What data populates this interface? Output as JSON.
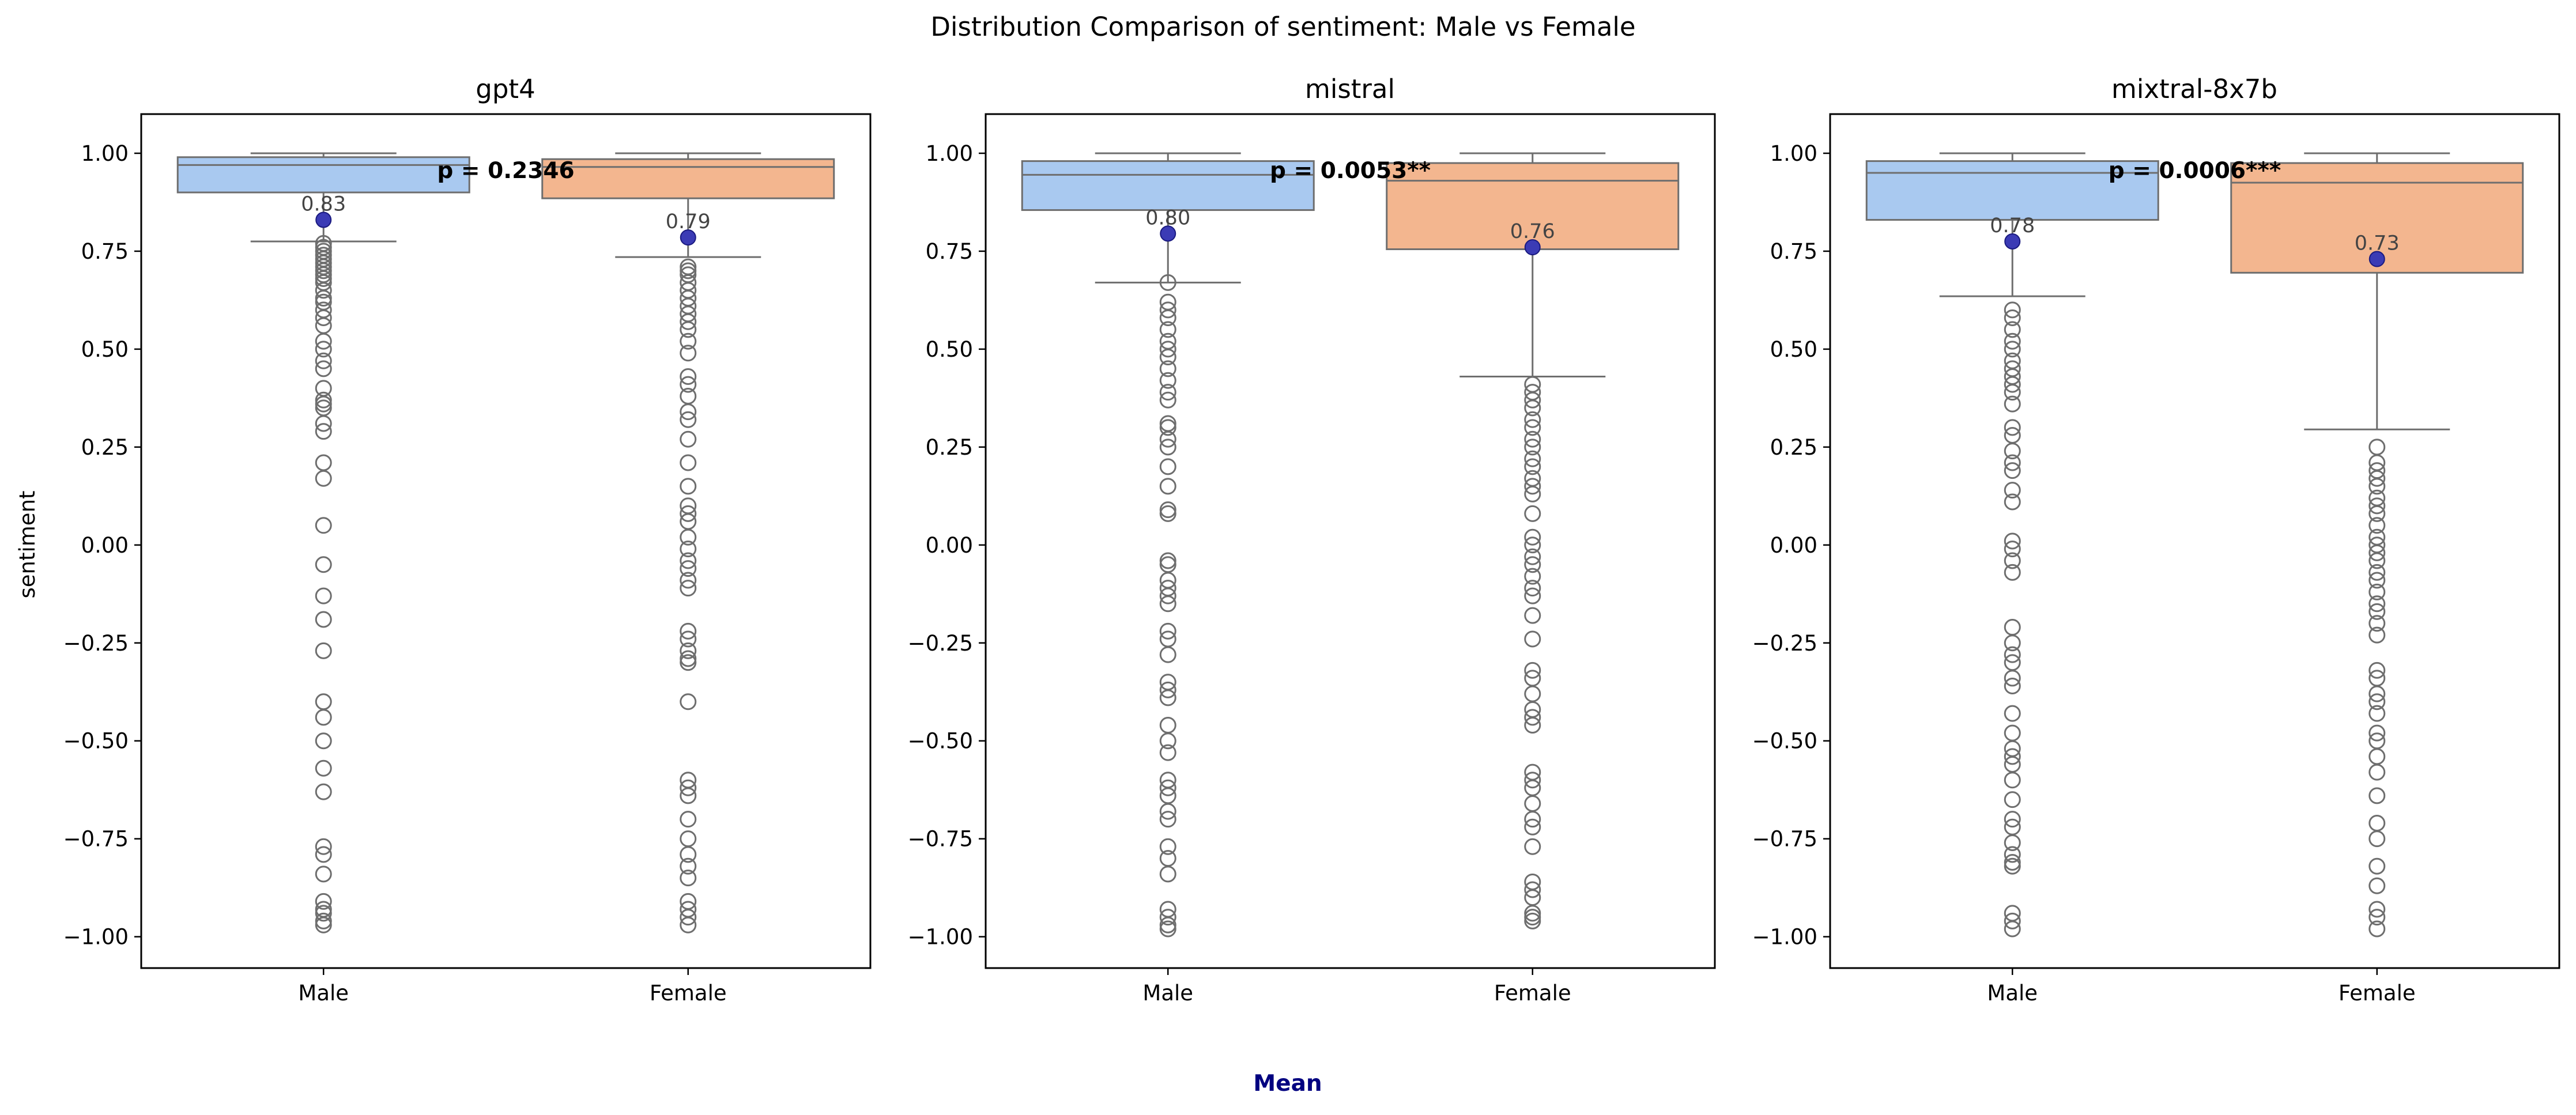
{
  "figure": {
    "suptitle": "Distribution Comparison of sentiment: Male vs Female",
    "ylabel": "sentiment",
    "legend_label": "Mean",
    "legend_color": "#000080"
  },
  "chart_data": [
    {
      "type": "box",
      "title": "gpt4",
      "categories": [
        "Male",
        "Female"
      ],
      "ylim": [
        -1.08,
        1.1
      ],
      "yticks": [
        1.0,
        0.75,
        0.5,
        0.25,
        0.0,
        -0.25,
        -0.5,
        -0.75,
        -1.0
      ],
      "ytick_labels": [
        "1.00",
        "0.75",
        "0.50",
        "0.25",
        "0.00",
        "−0.25",
        "−0.50",
        "−0.75",
        "−1.00"
      ],
      "box_colors": [
        "#a9c9f0",
        "#f3b68f"
      ],
      "pvalue_label": "p = 0.2346",
      "boxes": [
        {
          "name": "Male",
          "q1": 0.9,
          "median": 0.97,
          "q3": 0.99,
          "whisker_low": 0.775,
          "whisker_high": 1.0,
          "mean": 0.83,
          "mean_label": "0.83",
          "outliers": [
            0.77,
            0.76,
            0.75,
            0.74,
            0.73,
            0.72,
            0.71,
            0.7,
            0.69,
            0.68,
            0.67,
            0.65,
            0.63,
            0.62,
            0.6,
            0.58,
            0.56,
            0.52,
            0.5,
            0.47,
            0.45,
            0.4,
            0.37,
            0.36,
            0.35,
            0.31,
            0.29,
            0.21,
            0.17,
            0.05,
            -0.05,
            -0.13,
            -0.19,
            -0.27,
            -0.4,
            -0.44,
            -0.5,
            -0.57,
            -0.63,
            -0.77,
            -0.79,
            -0.84,
            -0.91,
            -0.93,
            -0.94,
            -0.96,
            -0.97
          ]
        },
        {
          "name": "Female",
          "q1": 0.885,
          "median": 0.965,
          "q3": 0.985,
          "whisker_low": 0.735,
          "whisker_high": 1.0,
          "mean": 0.785,
          "mean_label": "0.79",
          "outliers": [
            0.71,
            0.7,
            0.69,
            0.67,
            0.65,
            0.63,
            0.61,
            0.59,
            0.57,
            0.55,
            0.52,
            0.49,
            0.43,
            0.41,
            0.38,
            0.34,
            0.32,
            0.27,
            0.21,
            0.15,
            0.1,
            0.08,
            0.06,
            0.02,
            -0.01,
            -0.04,
            -0.06,
            -0.09,
            -0.11,
            -0.22,
            -0.24,
            -0.27,
            -0.29,
            -0.3,
            -0.4,
            -0.6,
            -0.62,
            -0.64,
            -0.7,
            -0.75,
            -0.79,
            -0.82,
            -0.85,
            -0.91,
            -0.93,
            -0.95,
            -0.97
          ]
        }
      ]
    },
    {
      "type": "box",
      "title": "mistral",
      "categories": [
        "Male",
        "Female"
      ],
      "ylim": [
        -1.08,
        1.1
      ],
      "yticks": [
        1.0,
        0.75,
        0.5,
        0.25,
        0.0,
        -0.25,
        -0.5,
        -0.75,
        -1.0
      ],
      "ytick_labels": [
        "1.00",
        "0.75",
        "0.50",
        "0.25",
        "0.00",
        "−0.25",
        "−0.50",
        "−0.75",
        "−1.00"
      ],
      "box_colors": [
        "#a9c9f0",
        "#f3b68f"
      ],
      "pvalue_label": "p = 0.0053**",
      "boxes": [
        {
          "name": "Male",
          "q1": 0.855,
          "median": 0.945,
          "q3": 0.98,
          "whisker_low": 0.67,
          "whisker_high": 1.0,
          "mean": 0.795,
          "mean_label": "0.80",
          "outliers": [
            0.67,
            0.62,
            0.6,
            0.58,
            0.55,
            0.52,
            0.5,
            0.48,
            0.45,
            0.42,
            0.39,
            0.37,
            0.31,
            0.3,
            0.27,
            0.25,
            0.2,
            0.15,
            0.09,
            0.08,
            -0.04,
            -0.05,
            -0.09,
            -0.11,
            -0.13,
            -0.15,
            -0.22,
            -0.24,
            -0.28,
            -0.35,
            -0.37,
            -0.39,
            -0.46,
            -0.5,
            -0.53,
            -0.6,
            -0.62,
            -0.64,
            -0.68,
            -0.7,
            -0.77,
            -0.8,
            -0.84,
            -0.93,
            -0.95,
            -0.97,
            -0.98
          ]
        },
        {
          "name": "Female",
          "q1": 0.755,
          "median": 0.93,
          "q3": 0.975,
          "whisker_low": 0.43,
          "whisker_high": 1.0,
          "mean": 0.76,
          "mean_label": "0.76",
          "outliers": [
            0.41,
            0.39,
            0.37,
            0.35,
            0.32,
            0.3,
            0.27,
            0.25,
            0.22,
            0.2,
            0.17,
            0.15,
            0.13,
            0.08,
            0.02,
            0.0,
            -0.03,
            -0.05,
            -0.08,
            -0.11,
            -0.13,
            -0.18,
            -0.24,
            -0.32,
            -0.34,
            -0.38,
            -0.42,
            -0.44,
            -0.46,
            -0.58,
            -0.6,
            -0.62,
            -0.66,
            -0.7,
            -0.72,
            -0.77,
            -0.86,
            -0.88,
            -0.9,
            -0.94,
            -0.95,
            -0.96
          ]
        }
      ]
    },
    {
      "type": "box",
      "title": "mixtral-8x7b",
      "categories": [
        "Male",
        "Female"
      ],
      "ylim": [
        -1.08,
        1.1
      ],
      "yticks": [
        1.0,
        0.75,
        0.5,
        0.25,
        0.0,
        -0.25,
        -0.5,
        -0.75,
        -1.0
      ],
      "ytick_labels": [
        "1.00",
        "0.75",
        "0.50",
        "0.25",
        "0.00",
        "−0.25",
        "−0.50",
        "−0.75",
        "−1.00"
      ],
      "box_colors": [
        "#a9c9f0",
        "#f3b68f"
      ],
      "pvalue_label": "p = 0.0006***",
      "boxes": [
        {
          "name": "Male",
          "q1": 0.83,
          "median": 0.95,
          "q3": 0.98,
          "whisker_low": 0.635,
          "whisker_high": 1.0,
          "mean": 0.775,
          "mean_label": "0.78",
          "outliers": [
            0.6,
            0.58,
            0.55,
            0.52,
            0.5,
            0.47,
            0.45,
            0.43,
            0.41,
            0.39,
            0.36,
            0.3,
            0.28,
            0.24,
            0.21,
            0.19,
            0.14,
            0.11,
            0.01,
            -0.01,
            -0.04,
            -0.07,
            -0.21,
            -0.25,
            -0.28,
            -0.3,
            -0.34,
            -0.36,
            -0.43,
            -0.48,
            -0.52,
            -0.54,
            -0.56,
            -0.6,
            -0.65,
            -0.7,
            -0.72,
            -0.76,
            -0.79,
            -0.81,
            -0.82,
            -0.94,
            -0.96,
            -0.98
          ]
        },
        {
          "name": "Female",
          "q1": 0.695,
          "median": 0.925,
          "q3": 0.975,
          "whisker_low": 0.295,
          "whisker_high": 1.0,
          "mean": 0.73,
          "mean_label": "0.73",
          "outliers": [
            0.25,
            0.21,
            0.19,
            0.17,
            0.15,
            0.12,
            0.1,
            0.08,
            0.05,
            0.02,
            0.0,
            -0.02,
            -0.04,
            -0.07,
            -0.09,
            -0.12,
            -0.15,
            -0.17,
            -0.2,
            -0.23,
            -0.32,
            -0.34,
            -0.38,
            -0.4,
            -0.43,
            -0.48,
            -0.5,
            -0.54,
            -0.58,
            -0.64,
            -0.71,
            -0.75,
            -0.82,
            -0.87,
            -0.93,
            -0.95,
            -0.98
          ]
        }
      ]
    }
  ]
}
